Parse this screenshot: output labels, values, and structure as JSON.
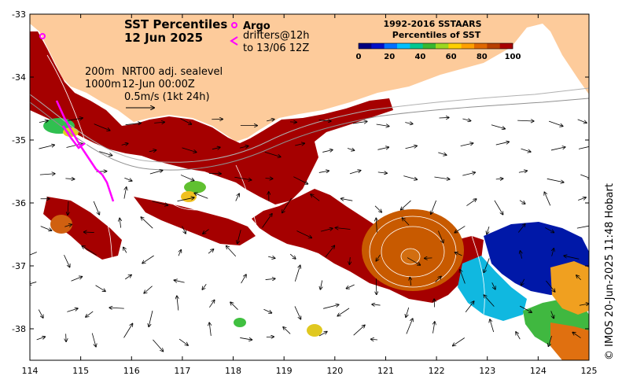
{
  "title": {
    "line1": "SST Percentiles",
    "line2": "12 Jun 2025"
  },
  "legend": {
    "argo_label": "Argo",
    "drifters_line1": "drifters@12h",
    "drifters_line2": "to 13/06 12Z",
    "colorbar_title1": "1992-2016 SSTAARS",
    "colorbar_title2": "Percentiles of SST",
    "colorbar_ticks": [
      "0",
      "20",
      "40",
      "60",
      "80",
      "100"
    ],
    "colorbar_colors": [
      "#00007f",
      "#0010c8",
      "#0070ff",
      "#00c0ff",
      "#00c890",
      "#38b830",
      "#9cd820",
      "#ffd000",
      "#ffa000",
      "#e06800",
      "#b84000",
      "#a80000"
    ]
  },
  "annotations": {
    "depth1": "200m",
    "depth2": "1000m",
    "nrt": "NRT00 adj. sealevel",
    "time": "12-Jun 00:00Z",
    "vector_scale": "0.5m/s (1kt 24h)"
  },
  "credit": "© IMOS 20-Jun-2025 11:48 Hobart",
  "colors": {
    "land": "#fdcb9b",
    "red_band": "#a50000",
    "orange_eddy": "#c85a00",
    "argo": "#ff00ff"
  },
  "chart_data": {
    "type": "map",
    "xlim": [
      114,
      125
    ],
    "ylim": [
      -38.5,
      -33
    ],
    "x_ticks": [
      "114",
      "115",
      "116",
      "117",
      "118",
      "119",
      "120",
      "121",
      "122",
      "123",
      "124",
      "125"
    ],
    "y_ticks": [
      "-33",
      "-34",
      "-35",
      "-36",
      "-37",
      "-38"
    ]
  }
}
